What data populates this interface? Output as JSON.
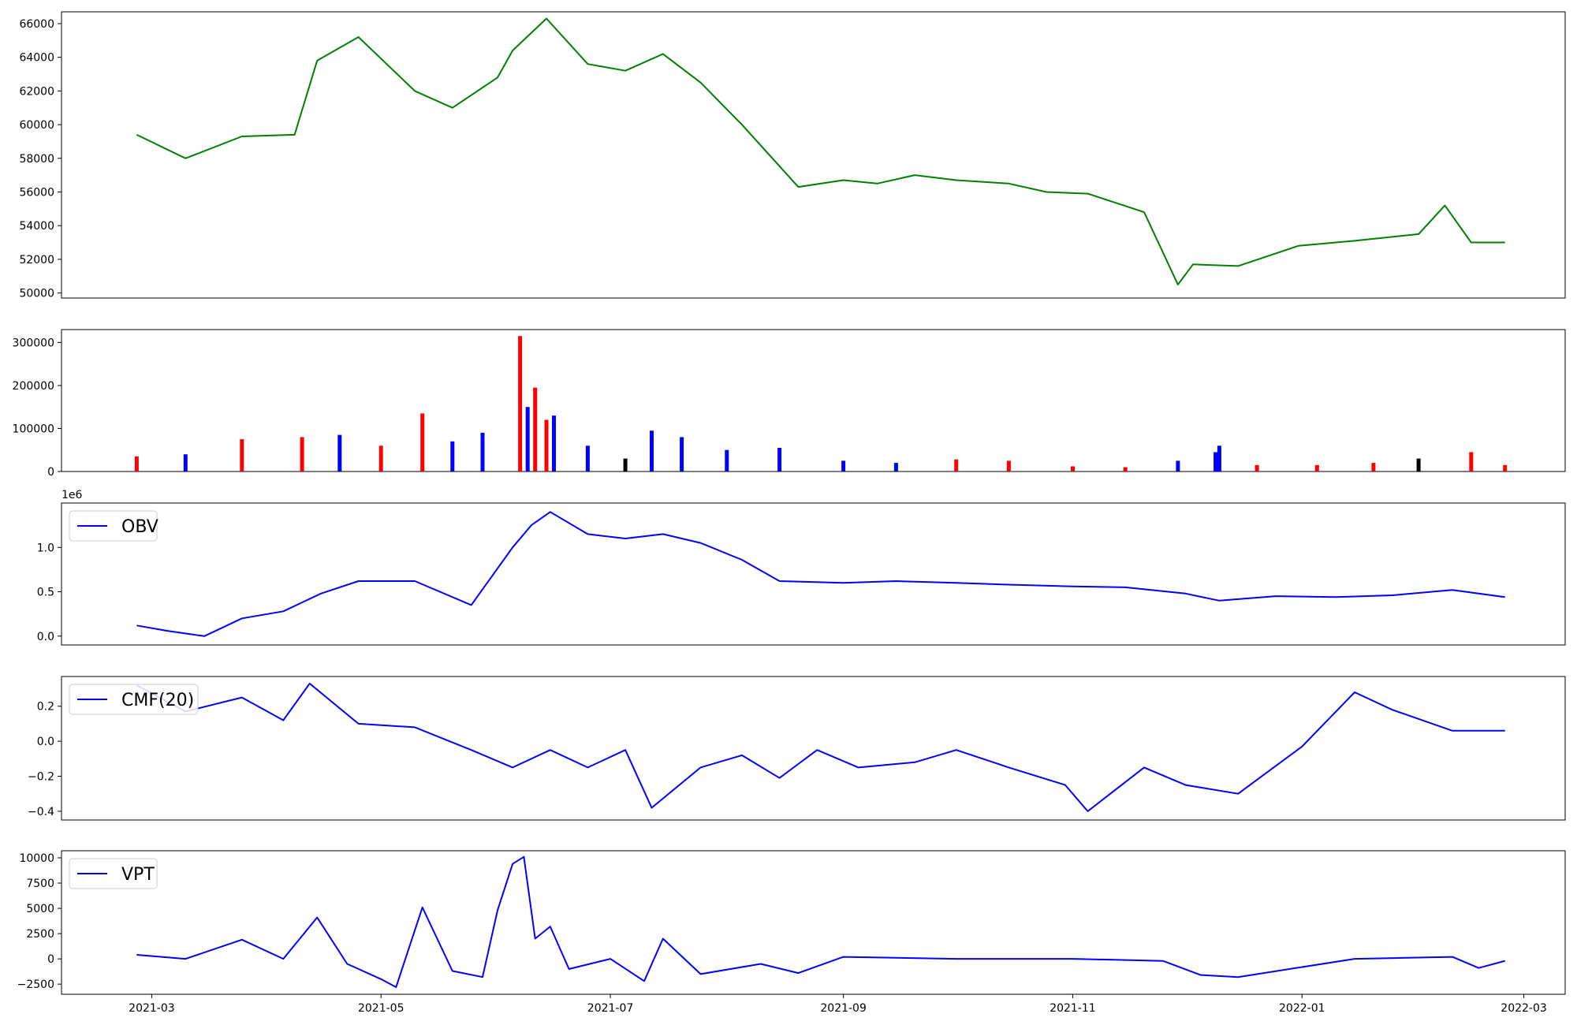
{
  "chart_data": [
    {
      "type": "line",
      "panel": "price",
      "title": "",
      "color": "#008000",
      "ylim": [
        49700,
        66700
      ],
      "yticks": [
        50000,
        52000,
        54000,
        56000,
        58000,
        60000,
        62000,
        64000,
        66000
      ],
      "ytick_labels": [
        "50000",
        "52000",
        "54000",
        "56000",
        "58000",
        "60000",
        "62000",
        "64000",
        "66000"
      ],
      "x": [
        "2021-02-25",
        "2021-03-10",
        "2021-03-25",
        "2021-04-08",
        "2021-04-14",
        "2021-04-25",
        "2021-05-10",
        "2021-05-20",
        "2021-06-01",
        "2021-06-05",
        "2021-06-14",
        "2021-06-25",
        "2021-07-05",
        "2021-07-15",
        "2021-07-25",
        "2021-08-05",
        "2021-08-20",
        "2021-09-01",
        "2021-09-10",
        "2021-09-20",
        "2021-10-01",
        "2021-10-15",
        "2021-10-25",
        "2021-11-05",
        "2021-11-20",
        "2021-11-29",
        "2021-12-03",
        "2021-12-15",
        "2021-12-31",
        "2022-01-15",
        "2022-02-01",
        "2022-02-08",
        "2022-02-15",
        "2022-02-24"
      ],
      "y": [
        59400,
        58000,
        59300,
        59400,
        63800,
        65200,
        62000,
        61000,
        62800,
        64400,
        66300,
        63600,
        63200,
        64200,
        62500,
        60000,
        56300,
        56700,
        56500,
        57000,
        56700,
        56500,
        56000,
        55900,
        54800,
        50500,
        51700,
        51600,
        52800,
        53100,
        53500,
        55200,
        53000,
        53000
      ]
    },
    {
      "type": "bar",
      "panel": "volume",
      "ylim": [
        0,
        330000
      ],
      "yticks": [
        0,
        100000,
        200000,
        300000
      ],
      "ytick_labels": [
        "0",
        "100000",
        "200000",
        "300000"
      ],
      "colors": {
        "up": "#ff0000",
        "down": "#0000ff",
        "flat": "#000000"
      },
      "x": [
        "2021-02-25",
        "2021-03-10",
        "2021-03-25",
        "2021-04-10",
        "2021-04-20",
        "2021-05-01",
        "2021-05-12",
        "2021-05-20",
        "2021-05-28",
        "2021-06-07",
        "2021-06-09",
        "2021-06-11",
        "2021-06-14",
        "2021-06-16",
        "2021-06-25",
        "2021-07-05",
        "2021-07-12",
        "2021-07-20",
        "2021-08-01",
        "2021-08-15",
        "2021-09-01",
        "2021-09-15",
        "2021-10-01",
        "2021-10-15",
        "2021-11-01",
        "2021-11-15",
        "2021-11-29",
        "2021-12-09",
        "2021-12-10",
        "2021-12-20",
        "2022-01-05",
        "2022-01-20",
        "2022-02-01",
        "2022-02-15",
        "2022-02-24"
      ],
      "values": [
        35000,
        40000,
        75000,
        80000,
        85000,
        60000,
        135000,
        70000,
        90000,
        315000,
        150000,
        195000,
        120000,
        130000,
        60000,
        30000,
        95000,
        80000,
        50000,
        55000,
        25000,
        20000,
        28000,
        25000,
        12000,
        10000,
        25000,
        45000,
        60000,
        15000,
        15000,
        20000,
        30000,
        45000,
        15000
      ],
      "direction": [
        "up",
        "down",
        "up",
        "up",
        "down",
        "up",
        "up",
        "down",
        "down",
        "up",
        "down",
        "up",
        "up",
        "down",
        "down",
        "flat",
        "down",
        "down",
        "down",
        "down",
        "down",
        "down",
        "up",
        "up",
        "red",
        "up",
        "down",
        "down",
        "down",
        "up",
        "up",
        "up",
        "flat",
        "up",
        "up"
      ]
    },
    {
      "type": "line",
      "panel": "obv",
      "color": "#0000ff",
      "ylim": [
        -0.1,
        1.5
      ],
      "yticks": [
        0.0,
        0.5,
        1.0
      ],
      "ytick_labels": [
        "0.0",
        "0.5",
        "1.0"
      ],
      "offset_label": "1e6",
      "legend": "OBV",
      "x": [
        "2021-02-25",
        "2021-03-05",
        "2021-03-15",
        "2021-03-25",
        "2021-04-05",
        "2021-04-15",
        "2021-04-25",
        "2021-05-10",
        "2021-05-25",
        "2021-06-05",
        "2021-06-10",
        "2021-06-15",
        "2021-06-25",
        "2021-07-05",
        "2021-07-15",
        "2021-07-25",
        "2021-08-05",
        "2021-08-15",
        "2021-09-01",
        "2021-09-15",
        "2021-10-01",
        "2021-10-15",
        "2021-11-01",
        "2021-11-15",
        "2021-12-01",
        "2021-12-10",
        "2021-12-25",
        "2022-01-10",
        "2022-01-25",
        "2022-02-10",
        "2022-02-24"
      ],
      "y": [
        0.12,
        0.06,
        0.0,
        0.2,
        0.28,
        0.48,
        0.62,
        0.62,
        0.35,
        1.0,
        1.25,
        1.4,
        1.15,
        1.1,
        1.15,
        1.05,
        0.86,
        0.62,
        0.6,
        0.62,
        0.6,
        0.58,
        0.56,
        0.55,
        0.48,
        0.4,
        0.45,
        0.44,
        0.46,
        0.52,
        0.44
      ]
    },
    {
      "type": "line",
      "panel": "cmf",
      "color": "#0000ff",
      "ylim": [
        -0.45,
        0.37
      ],
      "yticks": [
        -0.4,
        -0.2,
        0.0,
        0.2
      ],
      "ytick_labels": [
        "−0.4",
        "−0.2",
        "0.0",
        "0.2"
      ],
      "legend": "CMF(20)",
      "x": [
        "2021-02-25",
        "2021-03-10",
        "2021-03-25",
        "2021-04-05",
        "2021-04-12",
        "2021-04-25",
        "2021-05-10",
        "2021-05-25",
        "2021-06-05",
        "2021-06-15",
        "2021-06-25",
        "2021-07-05",
        "2021-07-12",
        "2021-07-25",
        "2021-08-05",
        "2021-08-15",
        "2021-08-25",
        "2021-09-05",
        "2021-09-20",
        "2021-10-01",
        "2021-10-15",
        "2021-10-30",
        "2021-11-05",
        "2021-11-20",
        "2021-12-01",
        "2021-12-15",
        "2022-01-01",
        "2022-01-15",
        "2022-01-25",
        "2022-02-10",
        "2022-02-24"
      ],
      "y": [
        0.32,
        0.17,
        0.25,
        0.12,
        0.33,
        0.1,
        0.08,
        -0.05,
        -0.15,
        -0.05,
        -0.15,
        -0.05,
        -0.38,
        -0.15,
        -0.08,
        -0.21,
        -0.05,
        -0.15,
        -0.12,
        -0.05,
        -0.15,
        -0.25,
        -0.4,
        -0.15,
        -0.25,
        -0.3,
        -0.03,
        0.28,
        0.18,
        0.06,
        0.06
      ]
    },
    {
      "type": "line",
      "panel": "vpt",
      "color": "#0000ff",
      "ylim": [
        -3500,
        10700
      ],
      "yticks": [
        -2500,
        0,
        2500,
        5000,
        7500,
        10000
      ],
      "ytick_labels": [
        "−2500",
        "0",
        "2500",
        "5000",
        "7500",
        "10000"
      ],
      "legend": "VPT",
      "x": [
        "2021-02-25",
        "2021-03-10",
        "2021-03-25",
        "2021-04-05",
        "2021-04-14",
        "2021-04-22",
        "2021-05-01",
        "2021-05-05",
        "2021-05-12",
        "2021-05-20",
        "2021-05-28",
        "2021-06-01",
        "2021-06-05",
        "2021-06-08",
        "2021-06-11",
        "2021-06-15",
        "2021-06-20",
        "2021-07-01",
        "2021-07-10",
        "2021-07-15",
        "2021-07-25",
        "2021-08-10",
        "2021-08-20",
        "2021-09-01",
        "2021-10-01",
        "2021-11-01",
        "2021-11-25",
        "2021-12-05",
        "2021-12-15",
        "2022-01-15",
        "2022-02-10",
        "2022-02-17",
        "2022-02-24"
      ],
      "y": [
        400,
        0,
        1900,
        0,
        4100,
        -500,
        -2000,
        -2800,
        5100,
        -1200,
        -1800,
        4800,
        9400,
        10100,
        2000,
        3200,
        -1000,
        0,
        -2200,
        2000,
        -1500,
        -500,
        -1400,
        200,
        0,
        0,
        -200,
        -1600,
        -1800,
        0,
        200,
        -900,
        -200
      ]
    }
  ],
  "x_axis": {
    "ticks": [
      "2021-03-01",
      "2021-05-01",
      "2021-07-01",
      "2021-09-01",
      "2021-11-01",
      "2022-01-01",
      "2022-03-01"
    ],
    "tick_labels": [
      "2021-03",
      "2021-05",
      "2021-07",
      "2021-09",
      "2021-11",
      "2022-01",
      "2022-03"
    ],
    "range": [
      "2021-02-05",
      "2022-03-12"
    ]
  }
}
